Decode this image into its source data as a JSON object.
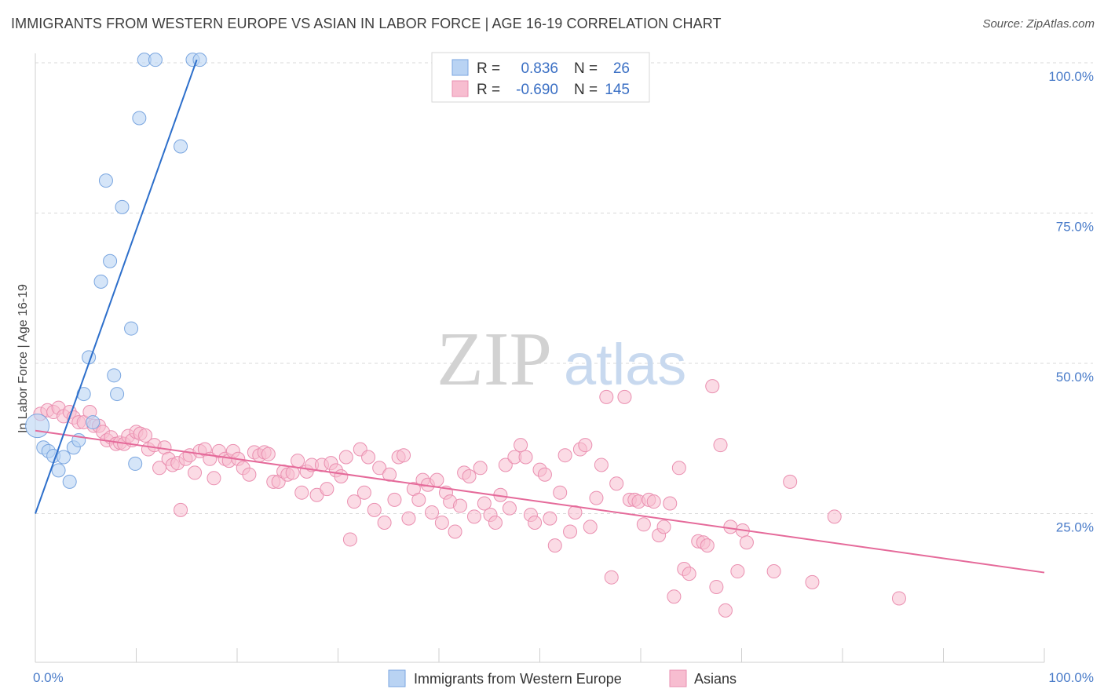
{
  "title": "IMMIGRANTS FROM WESTERN EUROPE VS ASIAN IN LABOR FORCE | AGE 16-19 CORRELATION CHART",
  "source": "Source: ZipAtlas.com",
  "watermark": {
    "zip": "ZIP",
    "atlas": "atlas"
  },
  "colors": {
    "blue_fill": "#b9d3f3",
    "blue_stroke": "#7aa6e0",
    "blue_line": "#2d6fcb",
    "pink_fill": "#f7bdd0",
    "pink_stroke": "#ea8fb0",
    "pink_line": "#e56a9a",
    "axis_text": "#4a7cc9",
    "grid": "#d9d9d9"
  },
  "legend": {
    "r_label": "R =",
    "n_label": "N =",
    "series": [
      {
        "r": "0.836",
        "n": "26"
      },
      {
        "r": "-0.690",
        "n": "145"
      }
    ]
  },
  "chart_data": {
    "type": "scatter",
    "title": "IMMIGRANTS FROM WESTERN EUROPE VS ASIAN IN LABOR FORCE | AGE 16-19 CORRELATION CHART",
    "xlabel": "",
    "ylabel": "In Labor Force | Age 16-19",
    "xlim": [
      0,
      100
    ],
    "ylim": [
      0,
      100
    ],
    "x_tick_labels": [
      {
        "value": 0,
        "label": "0.0%"
      },
      {
        "value": 100,
        "label": "100.0%"
      }
    ],
    "y_tick_labels": [
      {
        "value": 25,
        "label": "25.0%"
      },
      {
        "value": 50,
        "label": "50.0%"
      },
      {
        "value": 75,
        "label": "75.0%"
      },
      {
        "value": 100,
        "label": "100.0%"
      }
    ],
    "series": [
      {
        "name": "Immigrants from Western Europe",
        "color": "blue",
        "r": 0.836,
        "n": 26,
        "trend": {
          "x": [
            0,
            16
          ],
          "y": [
            25.0,
            100.5
          ]
        },
        "points": [
          {
            "x": 0.2,
            "y": 39.6,
            "big": true
          },
          {
            "x": 0.8,
            "y": 36.0
          },
          {
            "x": 1.3,
            "y": 35.4
          },
          {
            "x": 1.8,
            "y": 34.6
          },
          {
            "x": 2.3,
            "y": 32.2
          },
          {
            "x": 2.8,
            "y": 34.4
          },
          {
            "x": 3.4,
            "y": 30.3
          },
          {
            "x": 3.8,
            "y": 36.0
          },
          {
            "x": 4.3,
            "y": 37.2
          },
          {
            "x": 4.8,
            "y": 44.9
          },
          {
            "x": 5.3,
            "y": 51.0
          },
          {
            "x": 5.7,
            "y": 40.2
          },
          {
            "x": 6.5,
            "y": 63.6
          },
          {
            "x": 7.0,
            "y": 80.4
          },
          {
            "x": 7.4,
            "y": 67.0
          },
          {
            "x": 7.8,
            "y": 48.0
          },
          {
            "x": 8.1,
            "y": 44.9
          },
          {
            "x": 8.6,
            "y": 76.0
          },
          {
            "x": 9.5,
            "y": 55.8
          },
          {
            "x": 9.9,
            "y": 33.3
          },
          {
            "x": 10.3,
            "y": 90.8
          },
          {
            "x": 10.8,
            "y": 100.5
          },
          {
            "x": 11.9,
            "y": 100.5
          },
          {
            "x": 14.4,
            "y": 86.1
          },
          {
            "x": 15.6,
            "y": 100.5
          },
          {
            "x": 16.3,
            "y": 100.5
          }
        ]
      },
      {
        "name": "Asians",
        "color": "pink",
        "r": -0.69,
        "n": 145,
        "trend": {
          "x": [
            0,
            100
          ],
          "y": [
            38.8,
            15.2
          ]
        },
        "points": [
          {
            "x": 0.5,
            "y": 41.6
          },
          {
            "x": 1.2,
            "y": 42.2
          },
          {
            "x": 1.8,
            "y": 41.9
          },
          {
            "x": 2.3,
            "y": 42.6
          },
          {
            "x": 2.8,
            "y": 41.2
          },
          {
            "x": 3.4,
            "y": 41.9
          },
          {
            "x": 3.8,
            "y": 41.0
          },
          {
            "x": 4.3,
            "y": 40.2
          },
          {
            "x": 4.8,
            "y": 40.2
          },
          {
            "x": 5.4,
            "y": 41.9
          },
          {
            "x": 5.8,
            "y": 39.6
          },
          {
            "x": 6.3,
            "y": 39.6
          },
          {
            "x": 6.7,
            "y": 38.6
          },
          {
            "x": 7.1,
            "y": 37.2
          },
          {
            "x": 7.5,
            "y": 37.7
          },
          {
            "x": 8.0,
            "y": 36.6
          },
          {
            "x": 8.4,
            "y": 36.8
          },
          {
            "x": 8.8,
            "y": 36.6
          },
          {
            "x": 9.2,
            "y": 37.9
          },
          {
            "x": 9.6,
            "y": 37.2
          },
          {
            "x": 10.0,
            "y": 38.6
          },
          {
            "x": 10.4,
            "y": 38.3
          },
          {
            "x": 10.9,
            "y": 38.0
          },
          {
            "x": 11.2,
            "y": 35.7
          },
          {
            "x": 11.8,
            "y": 36.4
          },
          {
            "x": 12.3,
            "y": 32.6
          },
          {
            "x": 12.8,
            "y": 36.0
          },
          {
            "x": 13.2,
            "y": 34.1
          },
          {
            "x": 13.6,
            "y": 33.1
          },
          {
            "x": 14.1,
            "y": 33.4
          },
          {
            "x": 14.4,
            "y": 25.6
          },
          {
            "x": 14.9,
            "y": 34.1
          },
          {
            "x": 15.3,
            "y": 34.7
          },
          {
            "x": 15.8,
            "y": 31.8
          },
          {
            "x": 16.3,
            "y": 35.4
          },
          {
            "x": 16.8,
            "y": 35.7
          },
          {
            "x": 17.3,
            "y": 34.1
          },
          {
            "x": 17.7,
            "y": 30.9
          },
          {
            "x": 18.2,
            "y": 35.4
          },
          {
            "x": 18.8,
            "y": 34.1
          },
          {
            "x": 19.2,
            "y": 33.8
          },
          {
            "x": 19.6,
            "y": 35.4
          },
          {
            "x": 20.1,
            "y": 34.1
          },
          {
            "x": 20.6,
            "y": 32.6
          },
          {
            "x": 21.2,
            "y": 31.5
          },
          {
            "x": 21.7,
            "y": 35.2
          },
          {
            "x": 22.2,
            "y": 34.7
          },
          {
            "x": 22.7,
            "y": 35.2
          },
          {
            "x": 23.1,
            "y": 34.9
          },
          {
            "x": 23.6,
            "y": 30.3
          },
          {
            "x": 24.1,
            "y": 30.3
          },
          {
            "x": 24.6,
            "y": 32.0
          },
          {
            "x": 25.0,
            "y": 31.5
          },
          {
            "x": 25.5,
            "y": 31.8
          },
          {
            "x": 26.0,
            "y": 33.8
          },
          {
            "x": 26.4,
            "y": 28.5
          },
          {
            "x": 26.9,
            "y": 32.0
          },
          {
            "x": 27.4,
            "y": 33.1
          },
          {
            "x": 27.9,
            "y": 28.1
          },
          {
            "x": 28.4,
            "y": 33.1
          },
          {
            "x": 28.9,
            "y": 29.1
          },
          {
            "x": 29.3,
            "y": 33.4
          },
          {
            "x": 29.8,
            "y": 32.2
          },
          {
            "x": 30.3,
            "y": 31.2
          },
          {
            "x": 30.8,
            "y": 34.4
          },
          {
            "x": 31.2,
            "y": 20.7
          },
          {
            "x": 31.6,
            "y": 27.0
          },
          {
            "x": 32.2,
            "y": 35.7
          },
          {
            "x": 32.6,
            "y": 28.5
          },
          {
            "x": 33.0,
            "y": 34.4
          },
          {
            "x": 33.6,
            "y": 25.6
          },
          {
            "x": 34.1,
            "y": 32.6
          },
          {
            "x": 34.6,
            "y": 23.5
          },
          {
            "x": 35.1,
            "y": 31.5
          },
          {
            "x": 35.6,
            "y": 27.3
          },
          {
            "x": 36.0,
            "y": 34.4
          },
          {
            "x": 36.5,
            "y": 34.7
          },
          {
            "x": 37.0,
            "y": 24.2
          },
          {
            "x": 37.5,
            "y": 29.1
          },
          {
            "x": 38.0,
            "y": 27.3
          },
          {
            "x": 38.4,
            "y": 30.6
          },
          {
            "x": 38.9,
            "y": 29.8
          },
          {
            "x": 39.3,
            "y": 25.2
          },
          {
            "x": 39.8,
            "y": 30.6
          },
          {
            "x": 40.3,
            "y": 23.5
          },
          {
            "x": 40.7,
            "y": 28.5
          },
          {
            "x": 41.1,
            "y": 27.0
          },
          {
            "x": 41.6,
            "y": 22.0
          },
          {
            "x": 42.1,
            "y": 26.3
          },
          {
            "x": 42.5,
            "y": 31.8
          },
          {
            "x": 43.0,
            "y": 31.2
          },
          {
            "x": 43.5,
            "y": 24.5
          },
          {
            "x": 44.1,
            "y": 32.6
          },
          {
            "x": 44.5,
            "y": 26.7
          },
          {
            "x": 45.1,
            "y": 24.8
          },
          {
            "x": 45.6,
            "y": 23.5
          },
          {
            "x": 46.1,
            "y": 28.1
          },
          {
            "x": 46.6,
            "y": 33.1
          },
          {
            "x": 47.0,
            "y": 25.9
          },
          {
            "x": 47.5,
            "y": 34.4
          },
          {
            "x": 48.1,
            "y": 36.4
          },
          {
            "x": 48.6,
            "y": 34.4
          },
          {
            "x": 49.1,
            "y": 24.8
          },
          {
            "x": 49.5,
            "y": 23.5
          },
          {
            "x": 50.0,
            "y": 32.3
          },
          {
            "x": 50.5,
            "y": 31.5
          },
          {
            "x": 51.0,
            "y": 24.2
          },
          {
            "x": 51.5,
            "y": 19.7
          },
          {
            "x": 52.0,
            "y": 28.5
          },
          {
            "x": 52.5,
            "y": 34.7
          },
          {
            "x": 53.0,
            "y": 22.0
          },
          {
            "x": 53.5,
            "y": 25.2
          },
          {
            "x": 54.0,
            "y": 35.7
          },
          {
            "x": 54.5,
            "y": 36.4
          },
          {
            "x": 55.0,
            "y": 22.8
          },
          {
            "x": 55.6,
            "y": 27.6
          },
          {
            "x": 56.1,
            "y": 33.1
          },
          {
            "x": 56.6,
            "y": 44.4
          },
          {
            "x": 57.1,
            "y": 14.4
          },
          {
            "x": 57.6,
            "y": 30.0
          },
          {
            "x": 58.4,
            "y": 44.4
          },
          {
            "x": 58.9,
            "y": 27.3
          },
          {
            "x": 59.4,
            "y": 27.3
          },
          {
            "x": 59.8,
            "y": 27.0
          },
          {
            "x": 60.3,
            "y": 23.2
          },
          {
            "x": 60.8,
            "y": 27.3
          },
          {
            "x": 61.3,
            "y": 27.0
          },
          {
            "x": 61.8,
            "y": 21.4
          },
          {
            "x": 62.3,
            "y": 22.8
          },
          {
            "x": 62.9,
            "y": 26.7
          },
          {
            "x": 63.3,
            "y": 11.2
          },
          {
            "x": 63.8,
            "y": 32.6
          },
          {
            "x": 64.3,
            "y": 15.8
          },
          {
            "x": 64.8,
            "y": 15.0
          },
          {
            "x": 65.7,
            "y": 20.4
          },
          {
            "x": 66.2,
            "y": 20.2
          },
          {
            "x": 66.6,
            "y": 19.7
          },
          {
            "x": 67.1,
            "y": 46.2
          },
          {
            "x": 67.5,
            "y": 12.8
          },
          {
            "x": 67.9,
            "y": 36.4
          },
          {
            "x": 68.4,
            "y": 8.9
          },
          {
            "x": 68.9,
            "y": 22.8
          },
          {
            "x": 69.6,
            "y": 15.4
          },
          {
            "x": 70.1,
            "y": 22.2
          },
          {
            "x": 70.5,
            "y": 20.2
          },
          {
            "x": 73.2,
            "y": 15.4
          },
          {
            "x": 74.8,
            "y": 30.3
          },
          {
            "x": 77.0,
            "y": 13.6
          },
          {
            "x": 79.2,
            "y": 24.5
          },
          {
            "x": 85.6,
            "y": 10.9
          }
        ]
      }
    ]
  },
  "bottom_legend": [
    "Immigrants from Western Europe",
    "Asians"
  ]
}
